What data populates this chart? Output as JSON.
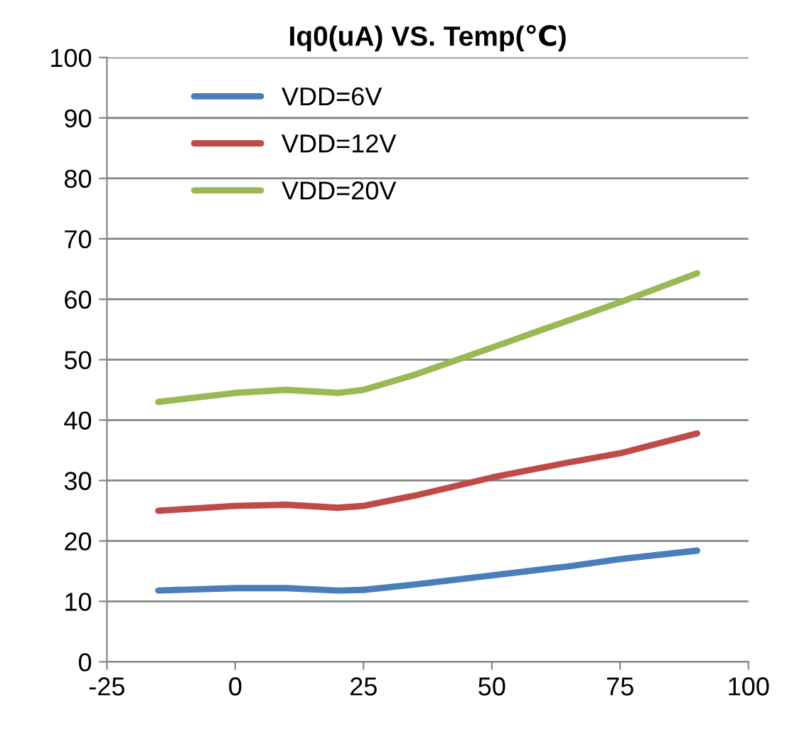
{
  "chart_data": {
    "type": "line",
    "title": "Iq0(uA) VS. Temp(℃)",
    "x": [
      -15,
      0,
      10,
      20,
      25,
      35,
      50,
      65,
      75,
      90
    ],
    "series": [
      {
        "name": "VDD=6V",
        "color": "#4a7ebb",
        "values": [
          11.8,
          12.2,
          12.2,
          11.8,
          11.9,
          12.8,
          14.3,
          15.8,
          17,
          18.4
        ]
      },
      {
        "name": "VDD=12V",
        "color": "#be4b48",
        "values": [
          25,
          25.8,
          26,
          25.5,
          25.8,
          27.5,
          30.5,
          33,
          34.5,
          37.8
        ]
      },
      {
        "name": "VDD=20V",
        "color": "#98b954",
        "values": [
          43,
          44.5,
          45,
          44.5,
          45,
          47.5,
          52,
          56.5,
          59.5,
          64.3
        ]
      }
    ],
    "xlim": [
      -25,
      100
    ],
    "xticks": [
      -25,
      0,
      25,
      50,
      75,
      100
    ],
    "ylim": [
      0,
      100
    ],
    "yticks": [
      0,
      10,
      20,
      30,
      40,
      50,
      60,
      70,
      80,
      90,
      100
    ],
    "grid": "y",
    "legend": "top left",
    "marker": "none",
    "line_style": "solid"
  }
}
